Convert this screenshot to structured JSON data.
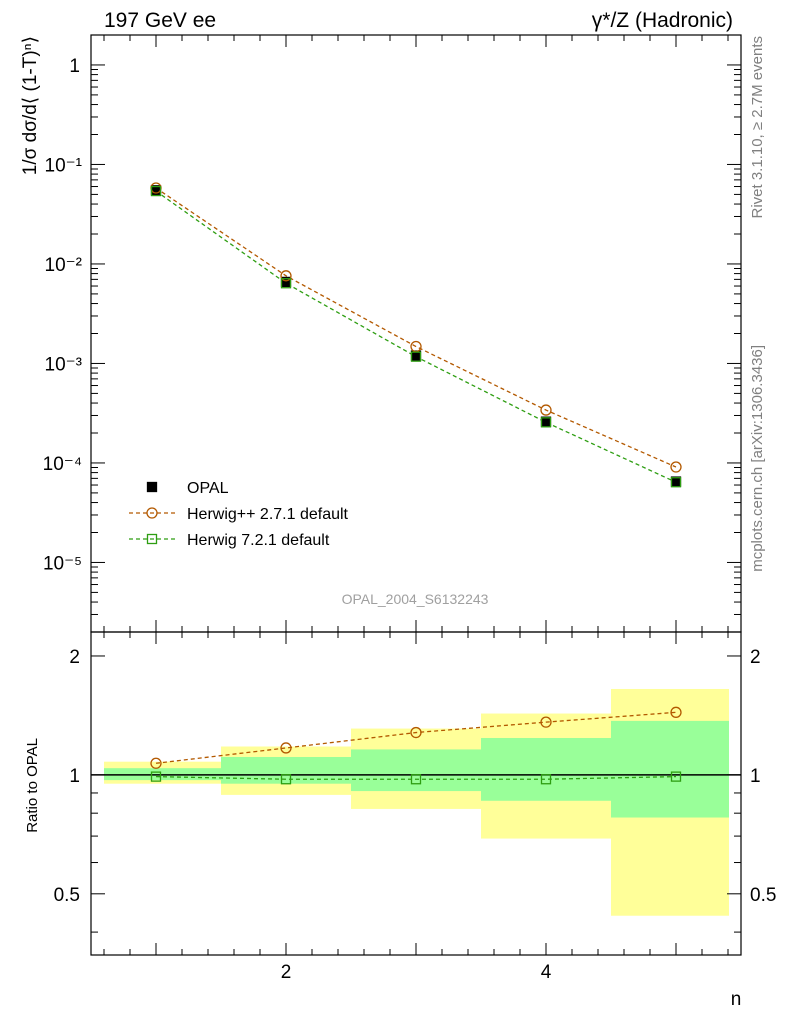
{
  "header": {
    "left_title": "197 GeV ee",
    "right_title": "γ*/Z (Hadronic)",
    "analysis_id": "OPAL_2004_S6132243",
    "rivet_label": "Rivet 3.1.10, ≥ 2.7M events",
    "mcplots_label": "mcplots.cern.ch [arXiv:1306.3436]"
  },
  "colors": {
    "data": "#000000",
    "herwigpp": "#b35900",
    "herwig7": "#2e9e12",
    "band_outer": "#ffff99",
    "band_inner": "#99ff99"
  },
  "chart_data": [
    {
      "type": "scatter",
      "panel": "main",
      "ylabel": "1/σ dσ/d⟨ (1-T)ⁿ⟩",
      "yscale": "log",
      "ylim": [
        2e-06,
        2
      ],
      "xlim": [
        0.5,
        5.5
      ],
      "x": [
        1,
        2,
        3,
        4,
        5
      ],
      "series": [
        {
          "name": "OPAL",
          "values": [
            0.055,
            0.0066,
            0.0012,
            0.00026,
            6.5e-05
          ]
        },
        {
          "name": "Herwig++ 2.7.1 default",
          "values": [
            0.058,
            0.0076,
            0.00148,
            0.00034,
            9.1e-05
          ]
        },
        {
          "name": "Herwig 7.2.1 default",
          "values": [
            0.054,
            0.0064,
            0.00117,
            0.000256,
            6.4e-05
          ]
        }
      ],
      "yticks": [
        "10⁻⁵",
        "10⁻⁴",
        "10⁻³",
        "10⁻²",
        "10⁻¹",
        "1"
      ],
      "legend": "left"
    },
    {
      "type": "line",
      "panel": "ratio",
      "xlabel": "n",
      "ylabel": "Ratio to OPAL",
      "ylim": [
        0.35,
        2.3
      ],
      "x": [
        1,
        2,
        3,
        4,
        5
      ],
      "xticks": [
        "2",
        "4"
      ],
      "yticks": [
        "0.5",
        "1",
        "2"
      ],
      "bands": [
        {
          "xlo": 0.5,
          "xhi": 1.5,
          "outer": [
            0.95,
            1.08
          ],
          "inner": [
            0.97,
            1.04
          ]
        },
        {
          "xlo": 1.5,
          "xhi": 2.5,
          "outer": [
            0.89,
            1.18
          ],
          "inner": [
            0.95,
            1.11
          ]
        },
        {
          "xlo": 2.5,
          "xhi": 3.5,
          "outer": [
            0.82,
            1.31
          ],
          "inner": [
            0.91,
            1.16
          ]
        },
        {
          "xlo": 3.5,
          "xhi": 4.5,
          "outer": [
            0.69,
            1.43
          ],
          "inner": [
            0.86,
            1.24
          ]
        },
        {
          "xlo": 4.5,
          "xhi": 5.5,
          "outer": [
            0.44,
            1.65
          ],
          "inner": [
            0.78,
            1.37
          ]
        }
      ],
      "series": [
        {
          "name": "Herwig++ 2.7.1 default",
          "values": [
            1.07,
            1.17,
            1.28,
            1.36,
            1.44
          ]
        },
        {
          "name": "Herwig 7.2.1 default",
          "values": [
            0.99,
            0.975,
            0.975,
            0.975,
            0.99
          ]
        }
      ]
    }
  ]
}
